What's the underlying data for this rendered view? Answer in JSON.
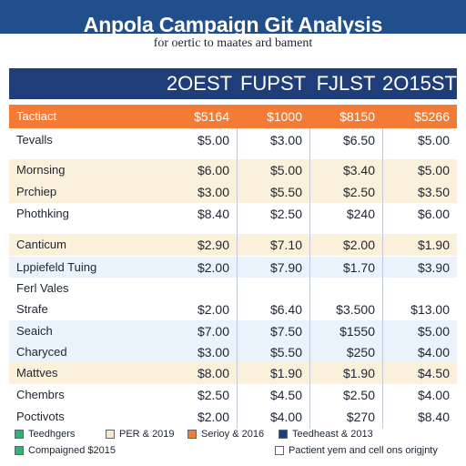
{
  "chart_data": {
    "type": "table",
    "title": "Anpola Campaign Git Analysis",
    "subtitle": "for oertic to maates ard bament",
    "columns": [
      "2OEST",
      "FUPST",
      "FJLST",
      "2O15ST"
    ],
    "header_row": {
      "label": "Tactiact",
      "values": [
        "$5164",
        "$1000",
        "$8150",
        "$5266"
      ]
    },
    "rows": [
      {
        "label": "Tevalls",
        "values": [
          "$5.00",
          "$3.00",
          "$6.50",
          "$5.00"
        ]
      },
      {
        "label": "Mornsing",
        "values": [
          "$6.00",
          "$5.00",
          "$3.40",
          "$5.00"
        ]
      },
      {
        "label": "Prchiep",
        "values": [
          "$3.00",
          "$5.50",
          "$2.50",
          "$3.50"
        ]
      },
      {
        "label": "Phothking",
        "values": [
          "$8.40",
          "$2.50",
          "$240",
          "$6.00"
        ]
      },
      {
        "label": "Canticum",
        "values": [
          "$2.90",
          "$7.10",
          "$2.00",
          "$1.90"
        ]
      },
      {
        "label": "Lppiefeld Tuing",
        "values": [
          "$2.00",
          "$7.90",
          "$1.70",
          "$3.90"
        ]
      },
      {
        "label": "Ferl Vales",
        "values": [
          "",
          "",
          "",
          ""
        ]
      },
      {
        "label": "Strafe",
        "values": [
          "$2.00",
          "$6.40",
          "$3.500",
          "$13.00"
        ]
      },
      {
        "label": "Seaich",
        "values": [
          "$7.00",
          "$7.50",
          "$1550",
          "$5.00"
        ]
      },
      {
        "label": "Charyced",
        "values": [
          "$3.00",
          "$5.50",
          "$250",
          "$4.00"
        ]
      },
      {
        "label": "Mattves",
        "values": [
          "$8.00",
          "$1.90",
          "$1.90",
          "$4.50"
        ]
      },
      {
        "label": "Chembrs",
        "values": [
          "$2.50",
          "$4.50",
          "$2.50",
          "$4.00"
        ]
      },
      {
        "label": "Poctivots",
        "values": [
          "$2.00",
          "$4.00",
          "$270",
          "$8.40"
        ]
      }
    ],
    "legend": [
      {
        "label": "Teedhgers",
        "color": "#2bb673"
      },
      {
        "label": "PER & 2019",
        "color": "#f6e7c6"
      },
      {
        "label": "Serioy & 2016",
        "color": "#f47b36"
      },
      {
        "label": "Teedheast & 2013",
        "color": "#1f3d78"
      },
      {
        "label": "Compaigned $2015",
        "color": "#2bb673"
      },
      {
        "label": "Pactient yem and cell ons origjnty",
        "color": "#ffffff"
      }
    ],
    "colors": {
      "header_band": "#214f8c",
      "column_header": "#1f3d78",
      "highlight_row": "#f47b36",
      "cream": "#fbf1da",
      "light_blue": "#eaf3fb",
      "white": "#ffffff"
    }
  }
}
